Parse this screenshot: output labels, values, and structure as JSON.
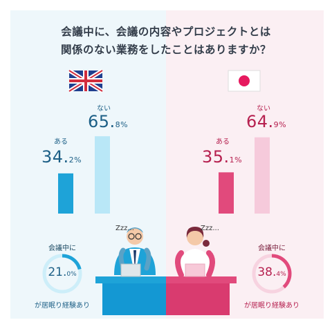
{
  "title_line1": "会議中に、会議の内容やプロジェクトとは",
  "title_line2": "関係のない業務をしたことはありますか？",
  "colors": {
    "uk_bar_yes": "#1ea3d8",
    "uk_bar_no": "#b9e7f7",
    "jp_bar_yes": "#e14a7c",
    "jp_bar_no": "#f6cadb",
    "uk_text": "#1c5f86",
    "jp_text": "#b6204f"
  },
  "uk": {
    "flag_icon": "uk-flag-icon",
    "yes_label": "ある",
    "yes_value_main": "34.",
    "yes_value_small": "2%",
    "no_label": "ない",
    "no_value_main": "65.",
    "no_value_small": "8%",
    "ring_top": "会議中に",
    "ring_value_main": "21.",
    "ring_value_small": "0%",
    "ring_bottom": "が居眠り経験あり",
    "zzz": "Zzz..."
  },
  "jp": {
    "flag_icon": "japan-flag-icon",
    "yes_label": "ある",
    "yes_value_main": "35.",
    "yes_value_small": "1%",
    "no_label": "ない",
    "no_value_main": "64.",
    "no_value_small": "9%",
    "ring_top": "会議中に",
    "ring_value_main": "38.",
    "ring_value_small": "4%",
    "ring_bottom": "が居眠り経験あり",
    "zzz": "Zzz..."
  },
  "chart_data": [
    {
      "type": "bar",
      "categories": [
        "ある",
        "ない"
      ],
      "values": [
        34.2,
        65.8
      ],
      "ylim": [
        0,
        100
      ]
    },
    {
      "type": "bar",
      "categories": [
        "ある",
        "ない"
      ],
      "values": [
        35.1,
        64.9
      ],
      "ylim": [
        0,
        100
      ]
    },
    {
      "type": "pie",
      "categories": [
        "会議中に居眠り経験あり"
      ],
      "values": [
        21.0
      ]
    },
    {
      "type": "pie",
      "categories": [
        "会議中に居眠り経験あり"
      ],
      "values": [
        38.4
      ]
    }
  ]
}
